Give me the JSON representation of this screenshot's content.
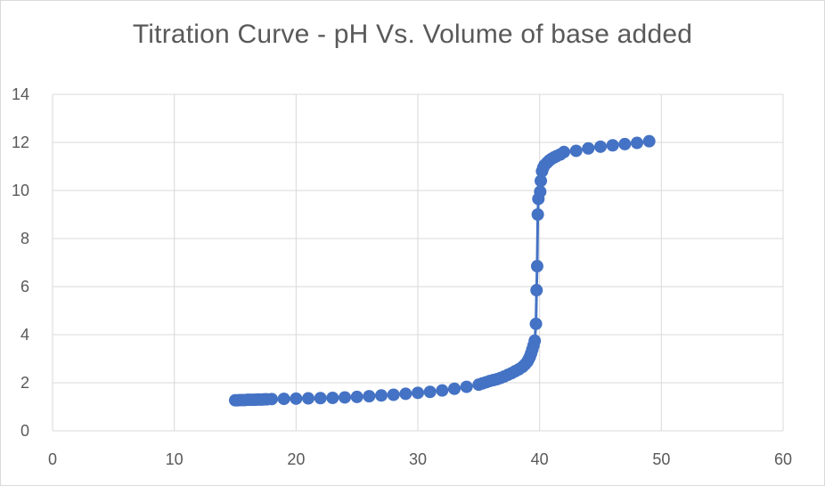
{
  "chart_data": {
    "type": "scatter",
    "title": "Titration Curve - pH Vs. Volume of base added",
    "xlabel": "",
    "ylabel": "",
    "xlim": [
      0,
      60
    ],
    "ylim": [
      0,
      14
    ],
    "x_ticks": [
      0,
      10,
      20,
      30,
      40,
      50,
      60
    ],
    "y_ticks": [
      0,
      2,
      4,
      6,
      8,
      10,
      12,
      14
    ],
    "grid": true,
    "legend": "none",
    "marker_color": "#4472C4",
    "line_color": "#4472C4",
    "series": [
      {
        "x": [
          15.0,
          15.2,
          15.4,
          15.6,
          15.8,
          16.0,
          16.2,
          16.4,
          16.6,
          16.8,
          17.0,
          17.2,
          17.4,
          17.6,
          18.0,
          19.0,
          20.0,
          21.0,
          22.0,
          23.0,
          24.0,
          25.0,
          26.0,
          27.0,
          28.0,
          29.0,
          30.0,
          31.0,
          32.0,
          33.0,
          34.0,
          35.0,
          35.3,
          35.6,
          35.9,
          36.2,
          36.5,
          36.8,
          37.1,
          37.4,
          37.7,
          38.0,
          38.3,
          38.6,
          38.8,
          39.0,
          39.1,
          39.2,
          39.3,
          39.4,
          39.5,
          39.6,
          39.7,
          39.75,
          39.8,
          39.85,
          39.9,
          40.05,
          40.1,
          40.2,
          40.3,
          40.4,
          40.6,
          40.8,
          41.0,
          41.2,
          41.4,
          41.7,
          42.0,
          43.0,
          44.0,
          45.0,
          46.0,
          47.0,
          48.0,
          49.0
        ],
        "y": [
          1.27,
          1.27,
          1.28,
          1.28,
          1.28,
          1.29,
          1.29,
          1.29,
          1.29,
          1.3,
          1.3,
          1.3,
          1.31,
          1.31,
          1.32,
          1.33,
          1.34,
          1.35,
          1.36,
          1.37,
          1.39,
          1.41,
          1.44,
          1.47,
          1.5,
          1.54,
          1.58,
          1.62,
          1.68,
          1.75,
          1.83,
          1.92,
          1.97,
          2.02,
          2.07,
          2.11,
          2.15,
          2.2,
          2.26,
          2.33,
          2.4,
          2.48,
          2.56,
          2.66,
          2.76,
          2.88,
          2.98,
          3.08,
          3.22,
          3.38,
          3.55,
          3.75,
          4.45,
          5.85,
          6.85,
          9.0,
          9.65,
          9.95,
          10.4,
          10.8,
          10.95,
          11.05,
          11.15,
          11.25,
          11.32,
          11.38,
          11.43,
          11.5,
          11.6,
          11.65,
          11.75,
          11.82,
          11.88,
          11.93,
          11.98,
          12.05
        ]
      }
    ]
  }
}
